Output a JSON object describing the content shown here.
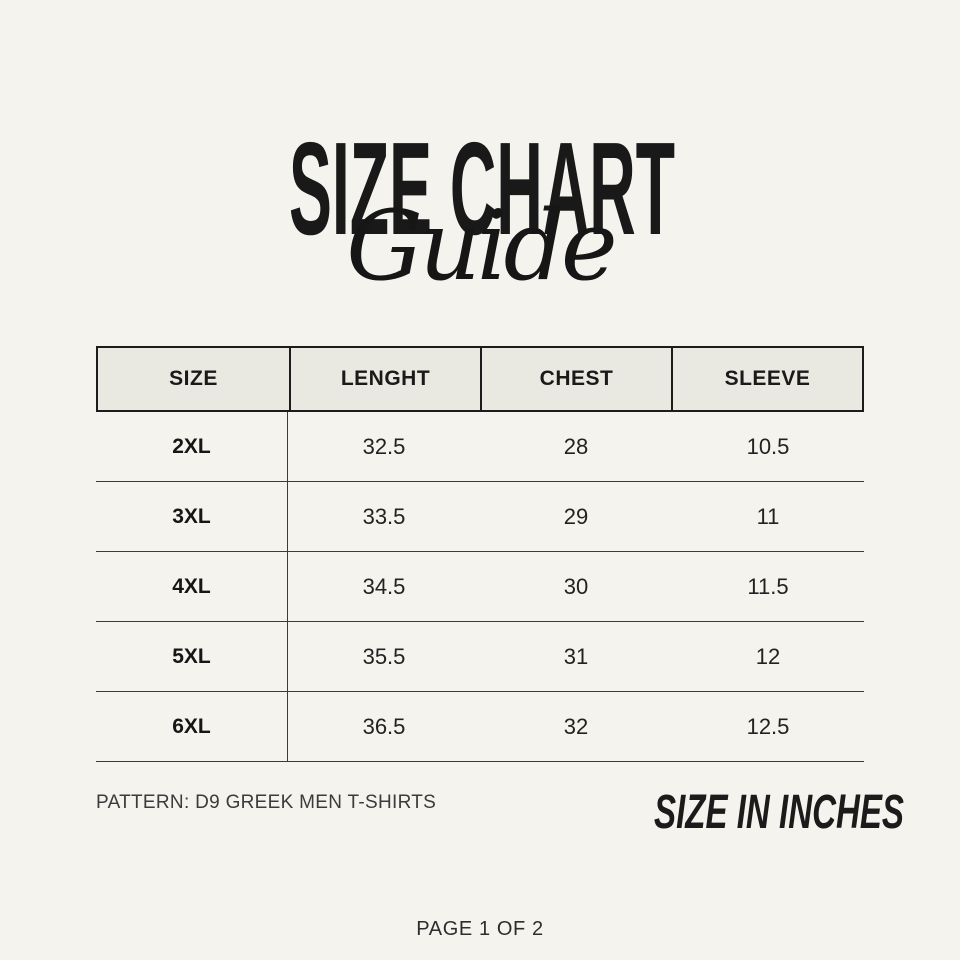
{
  "page": {
    "background_color": "#F5F3EE",
    "text_color": "#1E1E1E"
  },
  "header": {
    "title": "SIZE CHART",
    "subtitle": "Guide"
  },
  "table": {
    "header_bg": "#E9E8E1",
    "border_color": "#1c1c1c",
    "columns": [
      "SIZE",
      "LENGHT",
      "CHEST",
      "SLEEVE"
    ],
    "rows": [
      {
        "size": "2XL",
        "lenght": "32.5",
        "chest": "28",
        "sleeve": "10.5"
      },
      {
        "size": "3XL",
        "lenght": "33.5",
        "chest": "29",
        "sleeve": "11"
      },
      {
        "size": "4XL",
        "lenght": "34.5",
        "chest": "30",
        "sleeve": "11.5"
      },
      {
        "size": "5XL",
        "lenght": "35.5",
        "chest": "31",
        "sleeve": "12"
      },
      {
        "size": "6XL",
        "lenght": "36.5",
        "chest": "32",
        "sleeve": "12.5"
      }
    ]
  },
  "footer": {
    "pattern": "PATTERN: D9 GREEK MEN T-SHIRTS",
    "units": "SIZE IN INCHES",
    "page": "PAGE 1 OF 2"
  }
}
